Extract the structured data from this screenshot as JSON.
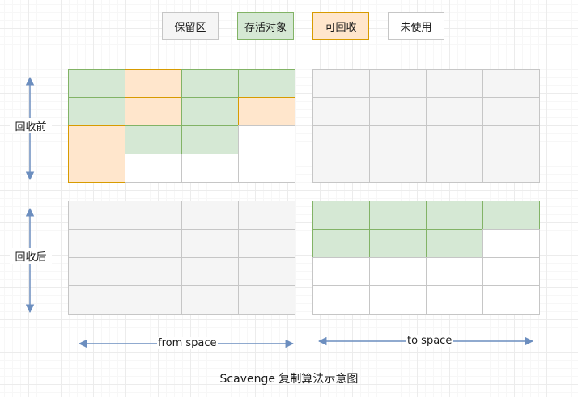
{
  "legend": [
    {
      "id": "reserved",
      "label": "保留区",
      "fill": "#f5f5f5",
      "stroke": "#c6c6c6"
    },
    {
      "id": "live",
      "label": "存活对象",
      "fill": "#d5e8d4",
      "stroke": "#82b366"
    },
    {
      "id": "recyclable",
      "label": "可回收",
      "fill": "#ffe6cc",
      "stroke": "#d79b00"
    },
    {
      "id": "unused",
      "label": "未使用",
      "fill": "#ffffff",
      "stroke": "#c6c6c6"
    }
  ],
  "rows": {
    "before": "回收前",
    "after": "回收后"
  },
  "spaces": {
    "from": "from space",
    "to": "to space"
  },
  "caption": "Scavenge 复制算法示意图",
  "grids": {
    "from_before": [
      [
        "live",
        "recyclable",
        "live",
        "live"
      ],
      [
        "live",
        "recyclable",
        "live",
        "recyclable"
      ],
      [
        "recyclable",
        "live",
        "live",
        "unused"
      ],
      [
        "recyclable",
        "unused",
        "unused",
        "unused"
      ]
    ],
    "to_before": [
      [
        "reserved",
        "reserved",
        "reserved",
        "reserved"
      ],
      [
        "reserved",
        "reserved",
        "reserved",
        "reserved"
      ],
      [
        "reserved",
        "reserved",
        "reserved",
        "reserved"
      ],
      [
        "reserved",
        "reserved",
        "reserved",
        "reserved"
      ]
    ],
    "from_after": [
      [
        "reserved",
        "reserved",
        "reserved",
        "reserved"
      ],
      [
        "reserved",
        "reserved",
        "reserved",
        "reserved"
      ],
      [
        "reserved",
        "reserved",
        "reserved",
        "reserved"
      ],
      [
        "reserved",
        "reserved",
        "reserved",
        "reserved"
      ]
    ],
    "to_after": [
      [
        "live",
        "live",
        "live",
        "live"
      ],
      [
        "live",
        "live",
        "live",
        "unused"
      ],
      [
        "unused",
        "unused",
        "unused",
        "unused"
      ],
      [
        "unused",
        "unused",
        "unused",
        "unused"
      ]
    ]
  },
  "arrow_color": "#6c8ebf"
}
